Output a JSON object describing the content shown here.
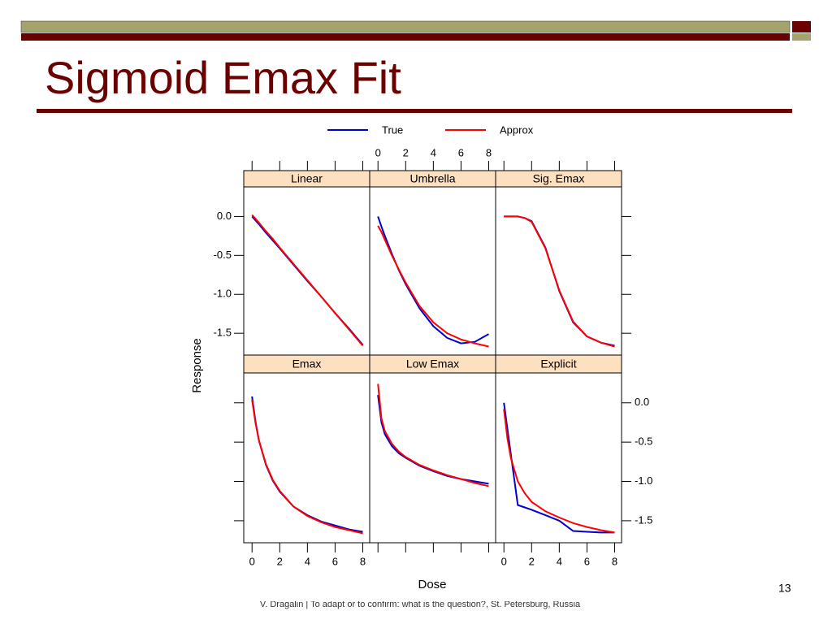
{
  "slide": {
    "title": "Sigmoid Emax Fit",
    "page_number": "13",
    "footer": "V. Dragalin | To adapt or to confirm: what is the question?, St. Petersburg, Russia"
  },
  "chart_data": {
    "type": "line",
    "xlabel": "Dose",
    "ylabel": "Response",
    "legend": [
      {
        "name": "True",
        "color": "#0000cc"
      },
      {
        "name": "Approx",
        "color": "#ff0000"
      }
    ],
    "x": [
      0,
      0.25,
      0.5,
      1,
      1.5,
      2,
      3,
      4,
      5,
      6,
      7,
      8
    ],
    "xlim": [
      -0.6,
      8.5
    ],
    "ylim": [
      -1.78,
      0.38
    ],
    "xticks": [
      0,
      2,
      4,
      6,
      8
    ],
    "yticks": [
      {
        "value": 0,
        "label": "0.0"
      },
      {
        "value": -0.5,
        "label": "-0.5"
      },
      {
        "value": -1,
        "label": "-1.0"
      },
      {
        "value": -1.5,
        "label": "-1.5"
      }
    ],
    "panels": [
      {
        "title": "Linear",
        "series": [
          {
            "values": [
              0,
              -0.05,
              -0.1,
              -0.21,
              -0.31,
              -0.41,
              -0.62,
              -0.83,
              -1.03,
              -1.24,
              -1.44,
              -1.65
            ]
          },
          {
            "values": [
              0.02,
              -0.03,
              -0.08,
              -0.19,
              -0.29,
              -0.4,
              -0.61,
              -0.82,
              -1.03,
              -1.24,
              -1.45,
              -1.66
            ]
          }
        ]
      },
      {
        "title": "Umbrella",
        "series": [
          {
            "values": [
              0,
              -0.13,
              -0.25,
              -0.48,
              -0.69,
              -0.87,
              -1.18,
              -1.41,
              -1.56,
              -1.63,
              -1.61,
              -1.51
            ]
          },
          {
            "values": [
              -0.12,
              -0.2,
              -0.3,
              -0.5,
              -0.68,
              -0.85,
              -1.15,
              -1.36,
              -1.5,
              -1.58,
              -1.63,
              -1.67
            ]
          }
        ]
      },
      {
        "title": "Sig. Emax",
        "series": [
          {
            "values": [
              0,
              0,
              0,
              0,
              -0.02,
              -0.06,
              -0.4,
              -0.96,
              -1.36,
              -1.54,
              -1.62,
              -1.66
            ]
          },
          {
            "values": [
              0,
              0,
              0,
              0,
              -0.02,
              -0.07,
              -0.41,
              -0.95,
              -1.35,
              -1.54,
              -1.62,
              -1.67
            ]
          }
        ]
      },
      {
        "title": "Emax",
        "series": [
          {
            "values": [
              0.08,
              -0.24,
              -0.48,
              -0.79,
              -0.99,
              -1.13,
              -1.32,
              -1.43,
              -1.51,
              -1.56,
              -1.61,
              -1.64
            ]
          },
          {
            "values": [
              0.04,
              -0.26,
              -0.48,
              -0.78,
              -0.98,
              -1.12,
              -1.32,
              -1.44,
              -1.52,
              -1.58,
              -1.62,
              -1.66
            ]
          }
        ]
      },
      {
        "title": "Low Emax",
        "series": [
          {
            "values": [
              0.1,
              -0.25,
              -0.4,
              -0.55,
              -0.64,
              -0.7,
              -0.8,
              -0.87,
              -0.93,
              -0.97,
              -1.0,
              -1.03
            ]
          },
          {
            "values": [
              0.24,
              -0.2,
              -0.36,
              -0.52,
              -0.62,
              -0.69,
              -0.79,
              -0.86,
              -0.92,
              -0.97,
              -1.02,
              -1.06
            ]
          }
        ]
      },
      {
        "title": "Explicit",
        "series": [
          {
            "values": [
              0,
              -0.33,
              -0.65,
              -1.3,
              -1.33,
              -1.36,
              -1.43,
              -1.5,
              -1.63,
              -1.64,
              -1.65,
              -1.65
            ]
          },
          {
            "values": [
              -0.08,
              -0.45,
              -0.7,
              -1.0,
              -1.15,
              -1.26,
              -1.38,
              -1.46,
              -1.53,
              -1.58,
              -1.62,
              -1.65
            ]
          }
        ]
      }
    ]
  }
}
